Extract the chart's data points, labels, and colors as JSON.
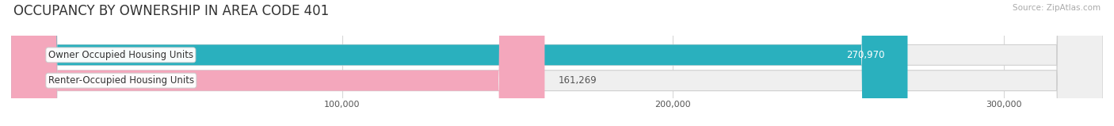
{
  "title": "OCCUPANCY BY OWNERSHIP IN AREA CODE 401",
  "source": "Source: ZipAtlas.com",
  "categories": [
    "Owner Occupied Housing Units",
    "Renter-Occupied Housing Units"
  ],
  "values": [
    270970,
    161269
  ],
  "bar_colors": [
    "#2ab0be",
    "#f4a7bc"
  ],
  "value_text_colors": [
    "#ffffff",
    "#555555"
  ],
  "xlim": [
    0,
    330000
  ],
  "xticks": [
    100000,
    200000,
    300000
  ],
  "xtick_labels": [
    "100,000",
    "200,000",
    "300,000"
  ],
  "bar_height": 0.52,
  "title_fontsize": 12,
  "source_fontsize": 7.5,
  "label_fontsize": 8.5,
  "value_fontsize": 8.5,
  "background_color": "#ffffff",
  "bar_bg_color": "#efefef",
  "grid_color": "#d8d8d8"
}
